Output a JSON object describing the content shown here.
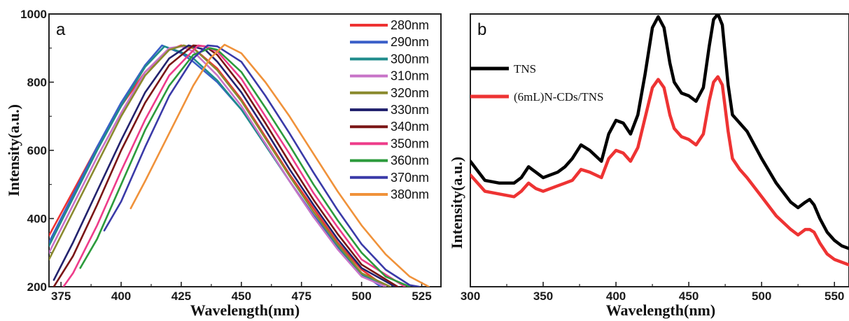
{
  "chart_data": [
    {
      "type": "line",
      "panel_label": "a",
      "xlabel": "Wavelength(nm)",
      "ylabel": "Intensity(a.u.)",
      "xlim": [
        370,
        533
      ],
      "ylim": [
        200,
        1000
      ],
      "xticks": [
        375,
        400,
        425,
        450,
        475,
        500,
        525
      ],
      "yticks": [
        200,
        400,
        600,
        800,
        1000
      ],
      "legend_position": "top-right",
      "series": [
        {
          "name": "280nm",
          "color": "#ee3333",
          "x": [
            370,
            380,
            390,
            400,
            410,
            420,
            425,
            430,
            440,
            450,
            460,
            470,
            480,
            490,
            500,
            510
          ],
          "y": [
            350,
            480,
            610,
            730,
            830,
            895,
            908,
            900,
            840,
            750,
            640,
            530,
            430,
            330,
            250,
            200
          ]
        },
        {
          "name": "290nm",
          "color": "#3a5fc8",
          "x": [
            370,
            380,
            390,
            400,
            410,
            417,
            425,
            430,
            440,
            450,
            460,
            470,
            480,
            490,
            500,
            508
          ],
          "y": [
            330,
            470,
            610,
            740,
            850,
            908,
            885,
            860,
            800,
            720,
            620,
            510,
            410,
            320,
            240,
            200
          ]
        },
        {
          "name": "300nm",
          "color": "#1f8c8c",
          "x": [
            370,
            380,
            390,
            400,
            410,
            418,
            425,
            430,
            440,
            450,
            460,
            470,
            480,
            490,
            500,
            510
          ],
          "y": [
            320,
            460,
            600,
            730,
            845,
            905,
            888,
            870,
            805,
            720,
            615,
            510,
            405,
            315,
            235,
            200
          ]
        },
        {
          "name": "310nm",
          "color": "#c873c8",
          "x": [
            370,
            380,
            390,
            400,
            410,
            420,
            425,
            430,
            440,
            450,
            460,
            470,
            480,
            490,
            500,
            510
          ],
          "y": [
            300,
            440,
            580,
            710,
            830,
            900,
            905,
            890,
            820,
            730,
            620,
            510,
            405,
            310,
            230,
            200
          ]
        },
        {
          "name": "320nm",
          "color": "#8a8a2e",
          "x": [
            370,
            380,
            390,
            400,
            410,
            420,
            426,
            430,
            440,
            450,
            460,
            470,
            480,
            490,
            500,
            512
          ],
          "y": [
            280,
            420,
            560,
            700,
            820,
            895,
            908,
            900,
            835,
            745,
            635,
            525,
            420,
            325,
            240,
            200
          ]
        },
        {
          "name": "330nm",
          "color": "#23236e",
          "x": [
            372,
            380,
            390,
            400,
            410,
            420,
            428,
            435,
            440,
            450,
            460,
            470,
            480,
            490,
            500,
            514
          ],
          "y": [
            220,
            330,
            480,
            630,
            770,
            870,
            908,
            895,
            860,
            770,
            660,
            545,
            440,
            340,
            255,
            200
          ]
        },
        {
          "name": "340nm",
          "color": "#7a1515",
          "x": [
            372,
            380,
            390,
            400,
            410,
            420,
            430,
            435,
            440,
            450,
            460,
            470,
            480,
            490,
            500,
            515
          ],
          "y": [
            200,
            290,
            440,
            600,
            740,
            850,
            908,
            905,
            880,
            790,
            680,
            565,
            455,
            355,
            265,
            200
          ]
        },
        {
          "name": "350nm",
          "color": "#ee3c8a",
          "x": [
            376,
            380,
            390,
            400,
            410,
            420,
            432,
            435,
            440,
            450,
            460,
            470,
            480,
            490,
            500,
            518
          ],
          "y": [
            200,
            240,
            380,
            540,
            690,
            820,
            908,
            905,
            890,
            810,
            700,
            590,
            475,
            375,
            280,
            200
          ]
        },
        {
          "name": "360nm",
          "color": "#2c9b3c",
          "x": [
            383,
            390,
            400,
            410,
            420,
            430,
            437,
            440,
            450,
            460,
            470,
            480,
            490,
            500,
            510,
            520
          ],
          "y": [
            255,
            340,
            500,
            660,
            790,
            880,
            900,
            895,
            830,
            725,
            615,
            500,
            395,
            300,
            230,
            200
          ]
        },
        {
          "name": "370nm",
          "color": "#3a3aa8",
          "x": [
            393,
            400,
            410,
            420,
            430,
            436,
            440,
            450,
            460,
            470,
            480,
            490,
            500,
            510,
            520,
            524
          ],
          "y": [
            365,
            450,
            610,
            760,
            870,
            908,
            905,
            860,
            760,
            650,
            535,
            425,
            325,
            250,
            205,
            200
          ]
        },
        {
          "name": "380nm",
          "color": "#f0923a",
          "x": [
            404,
            410,
            420,
            430,
            437,
            443,
            450,
            460,
            470,
            480,
            490,
            500,
            510,
            520,
            528
          ],
          "y": [
            430,
            510,
            650,
            790,
            870,
            910,
            885,
            800,
            700,
            590,
            480,
            380,
            295,
            230,
            200
          ]
        }
      ]
    },
    {
      "type": "line",
      "panel_label": "b",
      "xlabel": "Wavelength(nm)",
      "ylabel": "Intensity(a.u.)",
      "xlim": [
        300,
        560
      ],
      "ylim": [
        0,
        1
      ],
      "xticks": [
        300,
        350,
        400,
        450,
        500,
        550
      ],
      "yticks": [],
      "legend_position": "top-left",
      "series": [
        {
          "name": "TNS",
          "color": "#000000",
          "x": [
            300,
            310,
            320,
            330,
            335,
            340,
            345,
            350,
            360,
            365,
            370,
            376,
            382,
            390,
            395,
            400,
            405,
            410,
            415,
            420,
            425,
            429,
            433,
            437,
            440,
            445,
            450,
            455,
            460,
            464,
            467,
            470,
            473,
            477,
            480,
            485,
            490,
            500,
            510,
            520,
            525,
            530,
            533,
            536,
            540,
            545,
            550,
            555,
            560
          ],
          "y": [
            0.46,
            0.39,
            0.38,
            0.38,
            0.4,
            0.44,
            0.42,
            0.4,
            0.42,
            0.44,
            0.47,
            0.52,
            0.5,
            0.46,
            0.56,
            0.61,
            0.6,
            0.56,
            0.63,
            0.78,
            0.95,
            0.99,
            0.95,
            0.82,
            0.75,
            0.71,
            0.7,
            0.68,
            0.73,
            0.88,
            0.98,
            1.0,
            0.96,
            0.74,
            0.63,
            0.6,
            0.57,
            0.47,
            0.38,
            0.31,
            0.29,
            0.31,
            0.32,
            0.3,
            0.25,
            0.2,
            0.17,
            0.15,
            0.14
          ]
        },
        {
          "name": "(6mL)N-CDs/TNS",
          "color": "#ee3333",
          "x": [
            300,
            310,
            320,
            330,
            335,
            340,
            345,
            350,
            360,
            365,
            370,
            376,
            382,
            390,
            395,
            400,
            405,
            410,
            415,
            420,
            425,
            429,
            433,
            437,
            440,
            445,
            450,
            455,
            460,
            464,
            467,
            470,
            473,
            477,
            480,
            485,
            490,
            500,
            510,
            520,
            525,
            530,
            533,
            536,
            540,
            545,
            550,
            555,
            560
          ],
          "y": [
            0.41,
            0.35,
            0.34,
            0.33,
            0.35,
            0.38,
            0.36,
            0.35,
            0.37,
            0.38,
            0.39,
            0.43,
            0.42,
            0.4,
            0.47,
            0.5,
            0.49,
            0.46,
            0.51,
            0.62,
            0.73,
            0.76,
            0.73,
            0.63,
            0.58,
            0.55,
            0.54,
            0.52,
            0.56,
            0.68,
            0.75,
            0.77,
            0.74,
            0.57,
            0.47,
            0.43,
            0.4,
            0.33,
            0.26,
            0.21,
            0.19,
            0.21,
            0.21,
            0.2,
            0.16,
            0.12,
            0.1,
            0.09,
            0.08
          ]
        }
      ]
    }
  ]
}
